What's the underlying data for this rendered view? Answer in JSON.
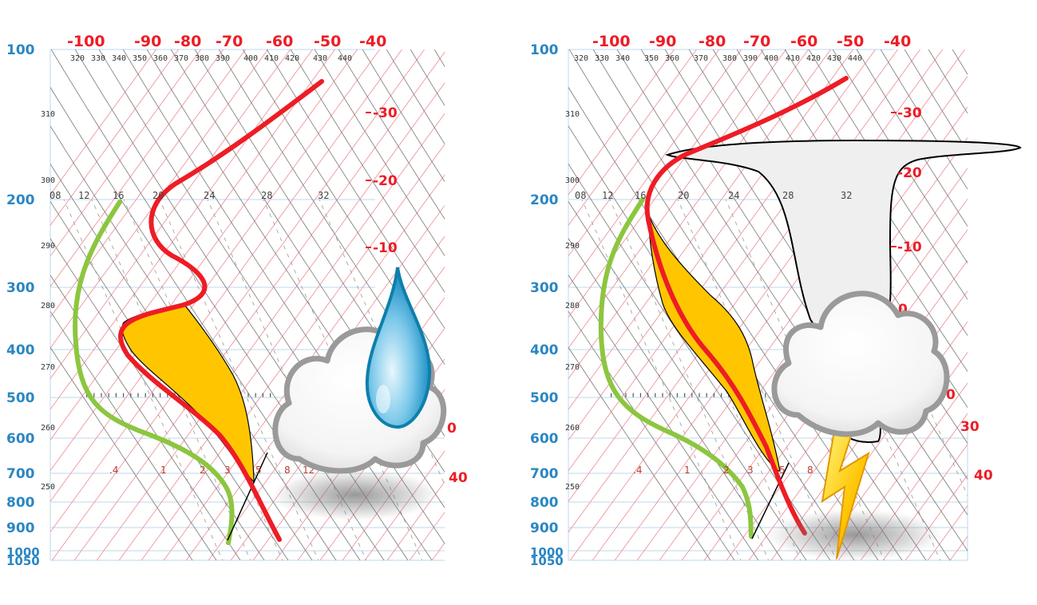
{
  "pressure_labels": [
    "100",
    "200",
    "300",
    "400",
    "500",
    "600",
    "700",
    "800",
    "900",
    "1000",
    "1050"
  ],
  "temp_top_labels": [
    "-100",
    "-90",
    "-80",
    "-70",
    "-60",
    "-50",
    "-40"
  ],
  "theta_top_labels": [
    "320",
    "330",
    "340",
    "350",
    "360",
    "370",
    "380",
    "390",
    "400",
    "410",
    "420",
    "430",
    "440"
  ],
  "theta_side_labels": [
    "310",
    "300",
    "290",
    "280",
    "270",
    "260",
    "250"
  ],
  "mixing_upper_labels": [
    "08",
    "12",
    "16",
    "20",
    "24",
    "28",
    "32"
  ],
  "mixing_lower_labels": [
    ".4",
    "1",
    "2",
    "3",
    "5",
    "8",
    "12"
  ],
  "left_panel": {
    "temp_right_labels": [
      "-30",
      "-20",
      "-10",
      "0",
      "40"
    ],
    "temp_right_hidden": [
      "0"
    ],
    "icon": "raindrop-cloud-icon"
  },
  "right_panel": {
    "temp_right_labels": [
      "-30",
      "-20",
      "-10",
      "0",
      "0",
      "30",
      "40"
    ],
    "mixing_lower_labels": [
      ".4",
      "1",
      "2",
      "3",
      "5",
      "8"
    ],
    "icon": "thunderstorm-cloud-icon"
  },
  "colors": {
    "temperature": "#ee1c25",
    "dewpoint": "#8cc63f",
    "cape": "#ffc600",
    "anvil": "#efefef",
    "pressure_text": "#2b86c2",
    "isotherm": "#ee1c25"
  }
}
